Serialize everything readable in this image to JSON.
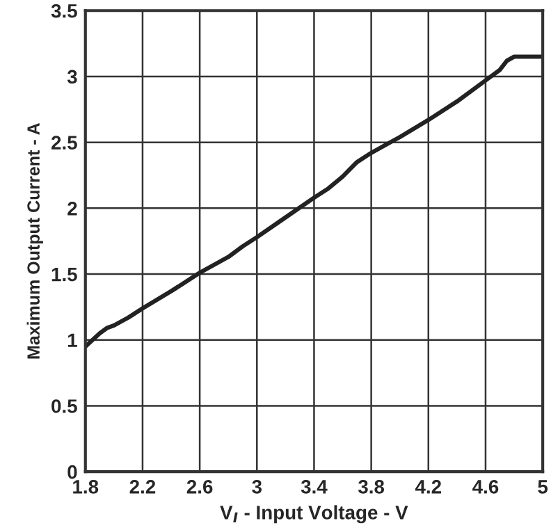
{
  "chart_data": {
    "type": "line",
    "xlabel": "V$_{I}$ - Input Voltage - V",
    "ylabel": "Maximum Output Current - A",
    "x": [
      1.8,
      1.9,
      1.95,
      2.0,
      2.1,
      2.2,
      2.4,
      2.6,
      2.8,
      2.9,
      3.0,
      3.2,
      3.4,
      3.5,
      3.6,
      3.7,
      3.8,
      3.9,
      4.0,
      4.2,
      4.4,
      4.6,
      4.7,
      4.75,
      4.8,
      5.0
    ],
    "series": [
      {
        "color": "#222222",
        "values": [
          0.95,
          1.05,
          1.09,
          1.11,
          1.17,
          1.24,
          1.37,
          1.51,
          1.63,
          1.71,
          1.78,
          1.93,
          2.08,
          2.15,
          2.24,
          2.35,
          2.42,
          2.48,
          2.54,
          2.67,
          2.81,
          2.97,
          3.05,
          3.12,
          3.15,
          3.15
        ]
      }
    ],
    "xlim": [
      1.8,
      5
    ],
    "ylim": [
      0,
      3.5
    ],
    "xticks": [
      1.8,
      2.2,
      2.6,
      3,
      3.4,
      3.8,
      4.2,
      4.6,
      5
    ],
    "yticks": [
      0,
      0.5,
      1,
      1.5,
      2,
      2.5,
      3,
      3.5
    ],
    "grid": true,
    "marker": "none",
    "line_style": "solid"
  }
}
